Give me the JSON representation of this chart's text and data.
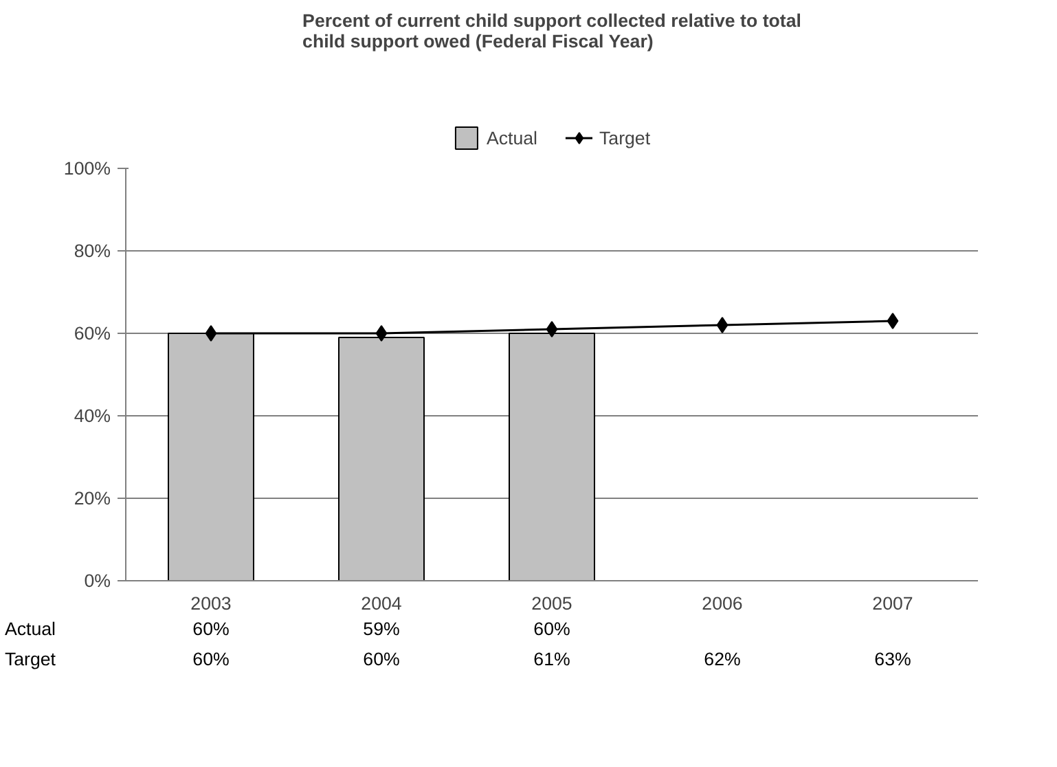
{
  "chart_data": {
    "type": "bar",
    "title": "Percent of current child support collected relative to total child support owed (Federal Fiscal Year)",
    "categories": [
      "2003",
      "2004",
      "2005",
      "2006",
      "2007"
    ],
    "series": [
      {
        "name": "Actual",
        "color": "#c0c0c0",
        "values": [
          60,
          59,
          60,
          null,
          null
        ],
        "value_labels": [
          "60%",
          "59%",
          "60%",
          null,
          null
        ]
      },
      {
        "name": "Target",
        "type": "line",
        "color": "#000000",
        "marker": "diamond",
        "values": [
          60,
          60,
          61,
          62,
          63
        ],
        "value_labels": [
          "60%",
          "60%",
          "61%",
          "62%",
          "63%"
        ]
      }
    ],
    "ylim": [
      0,
      100
    ],
    "yticks": [
      {
        "value": 0,
        "label": "0%"
      },
      {
        "value": 20,
        "label": "20%"
      },
      {
        "value": 40,
        "label": "40%"
      },
      {
        "value": 60,
        "label": "60%"
      },
      {
        "value": 80,
        "label": "80%"
      },
      {
        "value": 100,
        "label": "100%"
      }
    ],
    "grid": "y",
    "legend": "top"
  }
}
